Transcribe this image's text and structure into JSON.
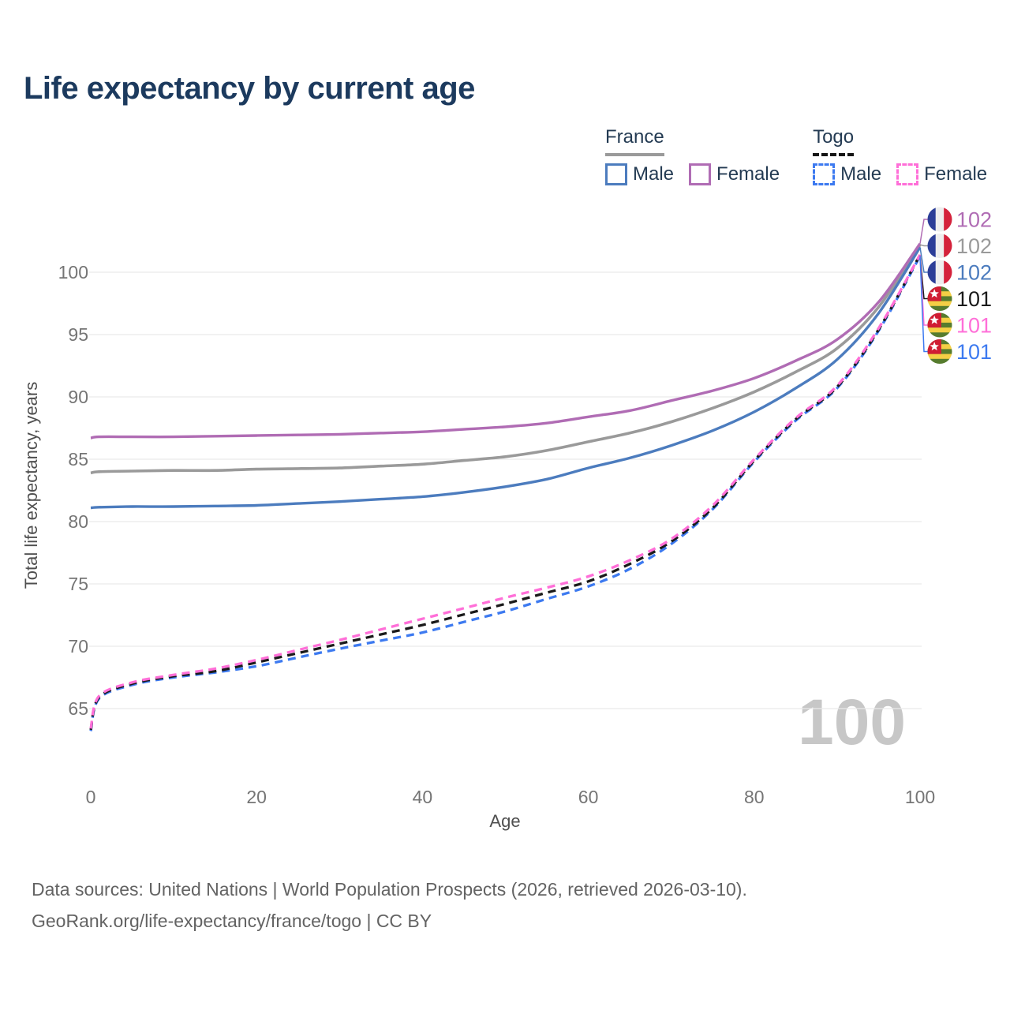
{
  "title": "Life expectancy by current age",
  "legend": {
    "france": {
      "label": "France",
      "male": "Male",
      "female": "Female"
    },
    "togo": {
      "label": "Togo",
      "male": "Male",
      "female": "Female"
    }
  },
  "watermark": "100",
  "footer": {
    "line1": "Data sources: United Nations | World Population Prospects (2026, retrieved 2026-03-10).",
    "line2": "GeoRank.org/life-expectancy/france/togo | CC BY"
  },
  "chart_data": {
    "type": "line",
    "title": "Life expectancy by current age",
    "xlabel": "Age",
    "ylabel": "Total life expectancy, years",
    "xlim": [
      0,
      100
    ],
    "ylim": [
      62.5,
      103
    ],
    "x_ticks": [
      0,
      20,
      40,
      60,
      80,
      100
    ],
    "y_ticks": [
      65,
      70,
      75,
      80,
      85,
      90,
      95,
      100
    ],
    "grid": "horizontal",
    "legend_position": "top-right",
    "x": [
      0,
      1,
      5,
      10,
      15,
      20,
      25,
      30,
      35,
      40,
      45,
      50,
      55,
      60,
      65,
      70,
      75,
      80,
      85,
      90,
      95,
      100
    ],
    "series": [
      {
        "name": "France Both sexes",
        "country": "France",
        "style": "solid",
        "color": "#9a9a9a",
        "width": 3.6,
        "end_label": "102",
        "values": [
          83.9,
          84.0,
          84.05,
          84.1,
          84.1,
          84.2,
          84.25,
          84.3,
          84.45,
          84.6,
          84.9,
          85.2,
          85.7,
          86.4,
          87.1,
          88.0,
          89.1,
          90.4,
          92.0,
          93.9,
          97.2,
          102.2
        ]
      },
      {
        "name": "France Male",
        "country": "France",
        "style": "solid",
        "color": "#4c7cbe",
        "width": 3.4,
        "end_label": "102",
        "values": [
          81.1,
          81.15,
          81.2,
          81.2,
          81.25,
          81.3,
          81.45,
          81.6,
          81.8,
          82.0,
          82.35,
          82.8,
          83.4,
          84.3,
          85.1,
          86.1,
          87.3,
          88.8,
          90.7,
          93.0,
          96.7,
          102.0
        ]
      },
      {
        "name": "France Female",
        "country": "France",
        "style": "solid",
        "color": "#b06cb4",
        "width": 3.4,
        "end_label": "102",
        "values": [
          86.7,
          86.8,
          86.8,
          86.8,
          86.85,
          86.9,
          86.95,
          87.0,
          87.1,
          87.2,
          87.4,
          87.6,
          87.9,
          88.4,
          88.9,
          89.7,
          90.5,
          91.5,
          92.9,
          94.6,
          97.6,
          102.3
        ]
      },
      {
        "name": "Togo Male",
        "country": "Togo",
        "style": "dashed",
        "color": "#3d7af0",
        "width": 3.3,
        "end_label": "101",
        "values": [
          63.2,
          65.8,
          66.9,
          67.5,
          67.9,
          68.4,
          69.1,
          69.8,
          70.45,
          71.1,
          71.95,
          72.8,
          73.8,
          74.8,
          76.2,
          78.2,
          81.0,
          84.8,
          88.1,
          90.7,
          95.3,
          101.3
        ]
      },
      {
        "name": "Togo Both sexes",
        "country": "Togo",
        "style": "dashed",
        "color": "#1a1a1a",
        "width": 3.3,
        "end_label": "101",
        "values": [
          63.3,
          65.9,
          67.0,
          67.6,
          68.0,
          68.7,
          69.45,
          70.2,
          70.95,
          71.7,
          72.55,
          73.4,
          74.3,
          75.2,
          76.6,
          78.4,
          81.1,
          84.9,
          88.2,
          90.8,
          95.4,
          101.4
        ]
      },
      {
        "name": "Togo Female",
        "country": "Togo",
        "style": "dashed",
        "color": "#ff6fd8",
        "width": 3.3,
        "end_label": "101",
        "values": [
          63.4,
          66.0,
          67.1,
          67.7,
          68.2,
          68.9,
          69.7,
          70.5,
          71.35,
          72.2,
          73.05,
          73.9,
          74.7,
          75.6,
          76.9,
          78.6,
          81.3,
          85.0,
          88.3,
          90.9,
          95.5,
          101.4
        ]
      }
    ],
    "end_labels": [
      {
        "series": 2,
        "value": "102",
        "flag": "france"
      },
      {
        "series": 0,
        "value": "102",
        "flag": "france"
      },
      {
        "series": 1,
        "value": "102",
        "flag": "france"
      },
      {
        "series": 4,
        "value": "101",
        "flag": "togo"
      },
      {
        "series": 5,
        "value": "101",
        "flag": "togo"
      },
      {
        "series": 3,
        "value": "101",
        "flag": "togo"
      }
    ],
    "flag_colors": {
      "france": {
        "blue": "#2c3e98",
        "white": "#eeeeee",
        "red": "#d4223b"
      },
      "togo": {
        "green": "#567c2e",
        "yellow": "#f4cf45",
        "red": "#d01c33",
        "star": "#ffffff"
      }
    }
  }
}
